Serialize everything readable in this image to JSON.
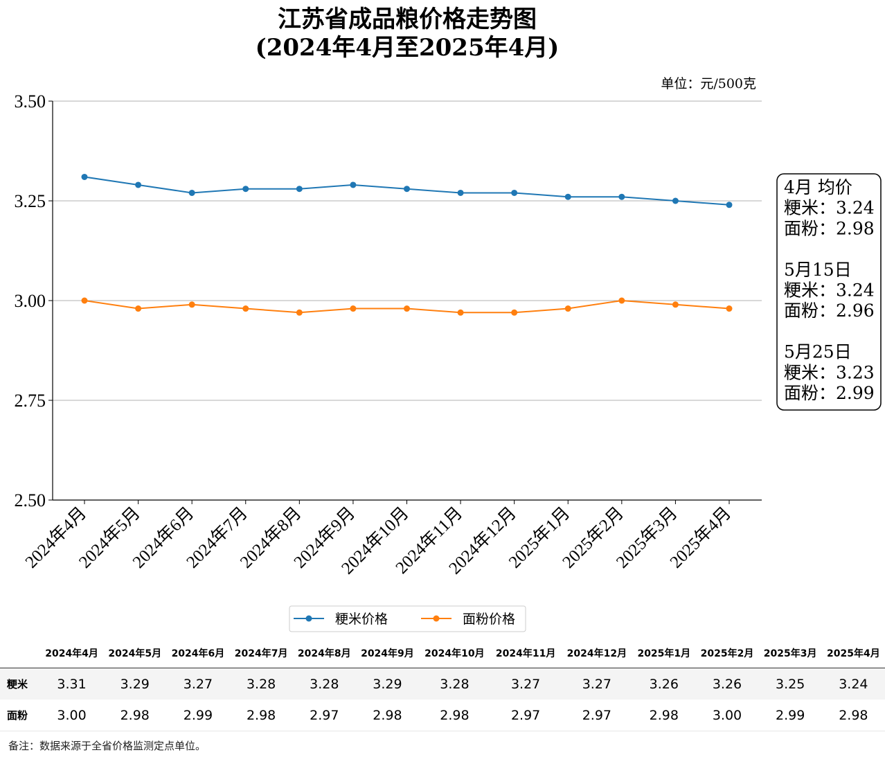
{
  "chart_data": {
    "type": "line",
    "title": "江苏省成品粮价格走势图",
    "subtitle": "(2024年4月至2025年4月)",
    "unit": "单位：元/500克",
    "categories": [
      "2024年4月",
      "2024年5月",
      "2024年6月",
      "2024年7月",
      "2024年8月",
      "2024年9月",
      "2024年10月",
      "2024年11月",
      "2024年12月",
      "2025年1月",
      "2025年2月",
      "2025年3月",
      "2025年4月"
    ],
    "series": [
      {
        "name": "粳米价格",
        "color": "#1f77b4",
        "values": [
          3.31,
          3.29,
          3.27,
          3.28,
          3.28,
          3.29,
          3.28,
          3.27,
          3.27,
          3.26,
          3.26,
          3.25,
          3.24
        ]
      },
      {
        "name": "面粉价格",
        "color": "#ff7f0e",
        "values": [
          3.0,
          2.98,
          2.99,
          2.98,
          2.97,
          2.98,
          2.98,
          2.97,
          2.97,
          2.98,
          3.0,
          2.99,
          2.98
        ]
      }
    ],
    "ylim": [
      2.5,
      3.5
    ],
    "yticks": [
      "2.50",
      "2.75",
      "3.00",
      "3.25",
      "3.50"
    ],
    "grid": "horizontal",
    "legend": "bottom-center",
    "annotation": [
      "4月 均价",
      "粳米：3.24",
      "面粉：2.98",
      "",
      "5月15日",
      "粳米：3.24",
      "面粉：2.96",
      "",
      "5月25日",
      "粳米：3.23",
      "面粉：2.99"
    ]
  },
  "table": {
    "headers": [
      "",
      "2024年4月",
      "2024年5月",
      "2024年6月",
      "2024年7月",
      "2024年8月",
      "2024年9月",
      "2024年10月",
      "2024年11月",
      "2024年12月",
      "2025年1月",
      "2025年2月",
      "2025年3月",
      "2025年4月"
    ],
    "rows": [
      {
        "label": "粳米",
        "values": [
          "3.31",
          "3.29",
          "3.27",
          "3.28",
          "3.28",
          "3.29",
          "3.28",
          "3.27",
          "3.27",
          "3.26",
          "3.26",
          "3.25",
          "3.24"
        ]
      },
      {
        "label": "面粉",
        "values": [
          "3.00",
          "2.98",
          "2.99",
          "2.98",
          "2.97",
          "2.98",
          "2.98",
          "2.97",
          "2.97",
          "2.98",
          "3.00",
          "2.99",
          "2.98"
        ]
      }
    ]
  },
  "footnote": "备注：数据来源于全省价格监测定点单位。"
}
